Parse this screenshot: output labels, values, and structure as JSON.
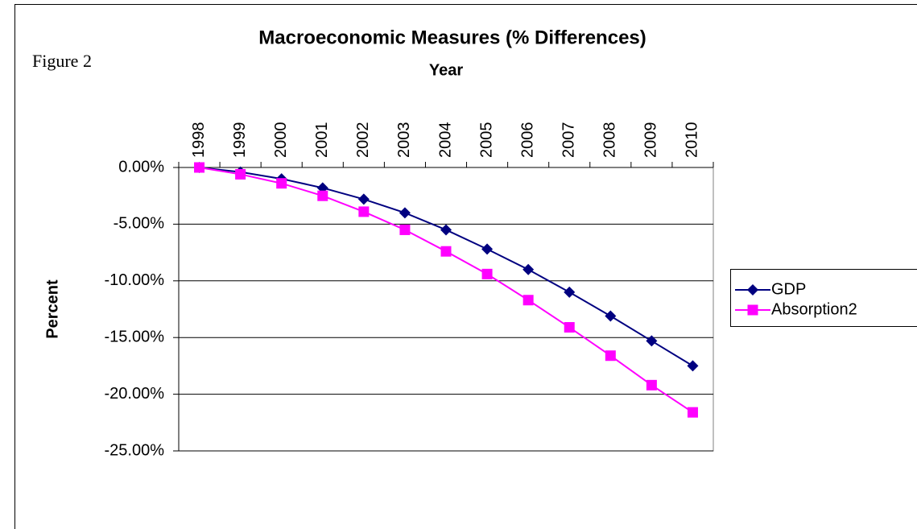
{
  "figure_label": "Figure 2",
  "chart_data": {
    "type": "line",
    "title": "Macroeconomic Measures (% Differences)",
    "x_label": "Year",
    "y_label": "Percent",
    "categories": [
      "1998",
      "1999",
      "2000",
      "2001",
      "2002",
      "2003",
      "2004",
      "2005",
      "2006",
      "2007",
      "2008",
      "2009",
      "2010"
    ],
    "series": [
      {
        "name": "GDP",
        "color": "#000080",
        "marker": "diamond",
        "values": [
          0,
          -0.4,
          -1.0,
          -1.8,
          -2.8,
          -4.0,
          -5.5,
          -7.2,
          -9.0,
          -11.0,
          -13.1,
          -15.3,
          -17.5
        ]
      },
      {
        "name": "Absorption2",
        "color": "#ff00ff",
        "marker": "square",
        "values": [
          0,
          -0.6,
          -1.4,
          -2.5,
          -3.9,
          -5.5,
          -7.4,
          -9.4,
          -11.7,
          -14.1,
          -16.6,
          -19.2,
          -21.6
        ]
      }
    ],
    "ylim": [
      -25,
      0
    ],
    "yticks": [
      {
        "value": 0,
        "label": "0.00%"
      },
      {
        "value": -5,
        "label": "-5.00%"
      },
      {
        "value": -10,
        "label": "-10.00%"
      },
      {
        "value": -15,
        "label": "-15.00%"
      },
      {
        "value": -20,
        "label": "-20.00%"
      },
      {
        "value": -25,
        "label": "-25.00%"
      }
    ],
    "grid": true,
    "legend": "right"
  }
}
